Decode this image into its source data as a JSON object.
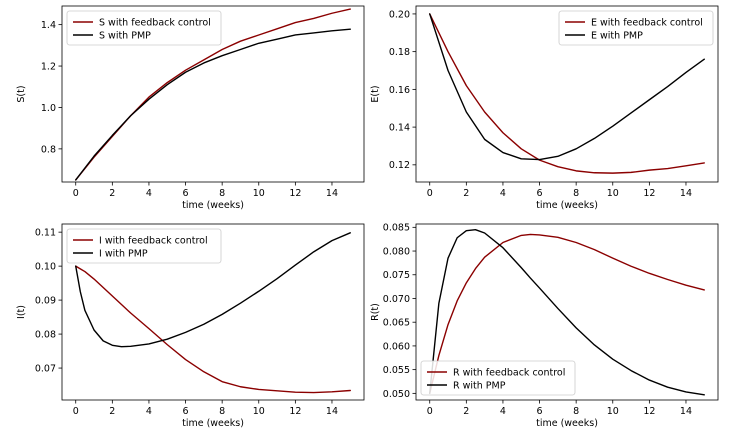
{
  "colors": {
    "feedback": "#8b0000",
    "pmp": "#000000"
  },
  "chart_data": [
    {
      "type": "line",
      "xlabel": "time (weeks)",
      "ylabel": "S(t)",
      "xlim": [
        -0.75,
        15.75
      ],
      "ylim": [
        0.64,
        1.49
      ],
      "xticks": [
        0,
        2,
        4,
        6,
        8,
        10,
        12,
        14
      ],
      "yticks": [
        0.8,
        1.0,
        1.2,
        1.4
      ],
      "ytick_labels": [
        "0.8",
        "1.0",
        "1.2",
        "1.4"
      ],
      "legend_loc": "upper left",
      "x": [
        0,
        1,
        2,
        3,
        4,
        5,
        6,
        7,
        8,
        9,
        10,
        11,
        12,
        13,
        14,
        15
      ],
      "series": [
        {
          "name": "S with feedback control",
          "color": "#8b0000",
          "values": [
            0.65,
            0.76,
            0.86,
            0.96,
            1.05,
            1.12,
            1.18,
            1.23,
            1.28,
            1.32,
            1.35,
            1.38,
            1.41,
            1.43,
            1.455,
            1.475
          ]
        },
        {
          "name": "S with PMP",
          "color": "#000000",
          "values": [
            0.65,
            0.765,
            0.865,
            0.96,
            1.04,
            1.11,
            1.17,
            1.215,
            1.25,
            1.28,
            1.31,
            1.33,
            1.35,
            1.36,
            1.37,
            1.378
          ]
        }
      ]
    },
    {
      "type": "line",
      "xlabel": "time (weeks)",
      "ylabel": "E(t)",
      "xlim": [
        -0.75,
        15.75
      ],
      "ylim": [
        0.1109,
        0.2042
      ],
      "xticks": [
        0,
        2,
        4,
        6,
        8,
        10,
        12,
        14
      ],
      "yticks": [
        0.12,
        0.14,
        0.16,
        0.18,
        0.2
      ],
      "ytick_labels": [
        "0.12",
        "0.14",
        "0.16",
        "0.18",
        "0.20"
      ],
      "legend_loc": "upper right",
      "x": [
        0,
        1,
        2,
        3,
        4,
        5,
        6,
        7,
        8,
        9,
        10,
        11,
        12,
        13,
        14,
        15
      ],
      "series": [
        {
          "name": "E with feedback control",
          "color": "#8b0000",
          "values": [
            0.2,
            0.18,
            0.162,
            0.148,
            0.137,
            0.1285,
            0.1225,
            0.119,
            0.1168,
            0.1158,
            0.1156,
            0.116,
            0.1172,
            0.118,
            0.1195,
            0.121
          ]
        },
        {
          "name": "E with PMP",
          "color": "#000000",
          "values": [
            0.2,
            0.17,
            0.148,
            0.1335,
            0.1265,
            0.1232,
            0.1228,
            0.1245,
            0.1285,
            0.134,
            0.1405,
            0.1475,
            0.1545,
            0.1615,
            0.169,
            0.176
          ]
        }
      ]
    },
    {
      "type": "line",
      "xlabel": "time (weeks)",
      "ylabel": "I(t)",
      "xlim": [
        -0.75,
        15.75
      ],
      "ylim": [
        0.0606,
        0.1124
      ],
      "xticks": [
        0,
        2,
        4,
        6,
        8,
        10,
        12,
        14
      ],
      "yticks": [
        0.07,
        0.08,
        0.09,
        0.1,
        0.11
      ],
      "ytick_labels": [
        "0.07",
        "0.08",
        "0.09",
        "0.10",
        "0.11"
      ],
      "legend_loc": "upper left",
      "x": [
        0,
        0.25,
        0.5,
        1,
        1.5,
        2,
        2.5,
        3,
        4,
        5,
        6,
        7,
        8,
        9,
        10,
        11,
        12,
        13,
        14,
        15
      ],
      "series": [
        {
          "name": "I with feedback control",
          "color": "#8b0000",
          "values": [
            0.1,
            0.0992,
            0.0984,
            0.0962,
            0.0937,
            0.0912,
            0.0887,
            0.0862,
            0.0816,
            0.0769,
            0.0725,
            0.0689,
            0.066,
            0.0645,
            0.0637,
            0.0633,
            0.0629,
            0.0628,
            0.063,
            0.0634
          ]
        },
        {
          "name": "I with PMP",
          "color": "#000000",
          "values": [
            0.1,
            0.0925,
            0.087,
            0.0812,
            0.078,
            0.0767,
            0.0763,
            0.0764,
            0.0771,
            0.0785,
            0.0805,
            0.0829,
            0.0858,
            0.0891,
            0.0926,
            0.0963,
            0.1003,
            0.1042,
            0.1075,
            0.1098
          ]
        }
      ]
    },
    {
      "type": "line",
      "xlabel": "time (weeks)",
      "ylabel": "R(t)",
      "xlim": [
        -0.75,
        15.75
      ],
      "ylim": [
        0.0486,
        0.0857
      ],
      "xticks": [
        0,
        2,
        4,
        6,
        8,
        10,
        12,
        14
      ],
      "yticks": [
        0.05,
        0.055,
        0.06,
        0.065,
        0.07,
        0.075,
        0.08,
        0.085
      ],
      "ytick_labels": [
        "0.050",
        "0.055",
        "0.060",
        "0.065",
        "0.070",
        "0.075",
        "0.080",
        "0.085"
      ],
      "legend_loc": "lower left",
      "x": [
        0,
        0.5,
        1,
        1.5,
        2,
        2.5,
        3,
        4,
        5,
        5.5,
        6,
        7,
        8,
        9,
        10,
        11,
        12,
        13,
        14,
        15
      ],
      "series": [
        {
          "name": "R with feedback control",
          "color": "#8b0000",
          "values": [
            0.05,
            0.058,
            0.0645,
            0.0695,
            0.0733,
            0.0763,
            0.0787,
            0.0818,
            0.0833,
            0.0835,
            0.0834,
            0.0829,
            0.0818,
            0.0803,
            0.0785,
            0.0768,
            0.0753,
            0.074,
            0.0728,
            0.0718
          ]
        },
        {
          "name": "R with PMP",
          "color": "#000000",
          "values": [
            0.05,
            0.069,
            0.0785,
            0.0828,
            0.0843,
            0.0845,
            0.0838,
            0.0807,
            0.0765,
            0.0743,
            0.0722,
            0.0679,
            0.0638,
            0.0602,
            0.0572,
            0.0548,
            0.0528,
            0.0513,
            0.0503,
            0.0497
          ]
        }
      ]
    }
  ]
}
